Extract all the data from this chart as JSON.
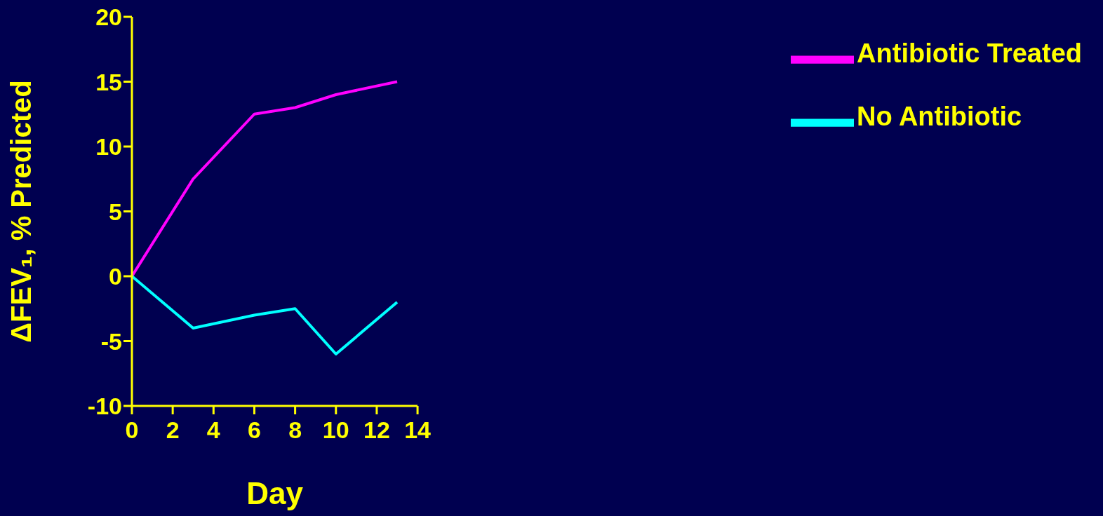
{
  "chart_data": {
    "type": "line",
    "xlabel": "Day",
    "ylabel": "ΔFEV₁, % Predicted",
    "x": [
      0,
      3,
      6,
      8,
      10,
      13
    ],
    "series": [
      {
        "name": "Antibiotic Treated",
        "color": "#ff00ff",
        "values": [
          0,
          7.5,
          12.5,
          13,
          14,
          15
        ]
      },
      {
        "name": "No Antibiotic",
        "color": "#00ffff",
        "values": [
          0,
          -4,
          -3,
          -2.5,
          -6,
          -2
        ]
      }
    ],
    "xlim": [
      0,
      14
    ],
    "xticks": [
      0,
      2,
      4,
      6,
      8,
      10,
      12,
      14
    ],
    "ylim": [
      -10,
      20
    ],
    "yticks": [
      -10,
      -5,
      0,
      5,
      10,
      15,
      20
    ],
    "grid": false,
    "legend": "top right",
    "marker": "none",
    "line_style": "solid"
  }
}
